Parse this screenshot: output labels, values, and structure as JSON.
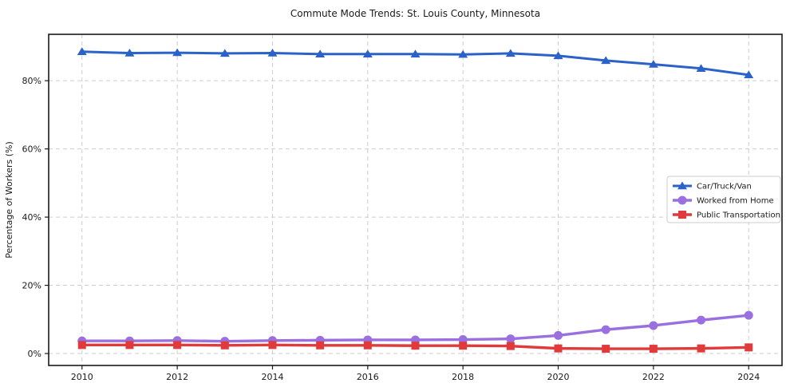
{
  "chart_data": {
    "type": "line",
    "title": "Commute Mode Trends: St. Louis County, Minnesota",
    "xlabel": "",
    "ylabel": "Percentage of Workers (%)",
    "x": [
      2010,
      2011,
      2012,
      2013,
      2014,
      2015,
      2016,
      2017,
      2018,
      2019,
      2020,
      2021,
      2022,
      2023,
      2024
    ],
    "x_ticks": [
      2010,
      2012,
      2014,
      2016,
      2018,
      2020,
      2022,
      2024
    ],
    "x_tick_labels": [
      "2010",
      "2012",
      "2014",
      "2016",
      "2018",
      "2020",
      "2022",
      "2024"
    ],
    "y_ticks": [
      0,
      20,
      40,
      60,
      80
    ],
    "y_tick_labels": [
      "0%",
      "20%",
      "40%",
      "60%",
      "80%"
    ],
    "xlim": [
      2009.3,
      2024.7
    ],
    "ylim": [
      -3.5,
      93.6
    ],
    "grid": true,
    "grid_style": "dashed",
    "legend_position": "center-right",
    "series": [
      {
        "name": "Car/Truck/Van",
        "color": "#2b62c9",
        "marker": "triangle",
        "values": [
          88.5,
          88.1,
          88.2,
          88.0,
          88.1,
          87.8,
          87.8,
          87.8,
          87.7,
          88.0,
          87.3,
          85.9,
          84.8,
          83.6,
          81.7
        ]
      },
      {
        "name": "Worked from Home",
        "color": "#9a6fdf",
        "marker": "circle",
        "values": [
          3.7,
          3.7,
          3.8,
          3.6,
          3.8,
          3.9,
          4.0,
          4.0,
          4.1,
          4.3,
          5.3,
          7.0,
          8.2,
          9.8,
          11.2
        ]
      },
      {
        "name": "Public Transportation",
        "color": "#e03a3a",
        "marker": "square",
        "values": [
          2.5,
          2.5,
          2.5,
          2.4,
          2.5,
          2.4,
          2.4,
          2.3,
          2.3,
          2.2,
          1.5,
          1.4,
          1.4,
          1.5,
          1.8
        ]
      }
    ],
    "style": {
      "grid_color": "#cdcdcd",
      "spine_color": "#1a1a1a",
      "background_color": "#ffffff",
      "legend_border_color": "#cccccc"
    }
  }
}
